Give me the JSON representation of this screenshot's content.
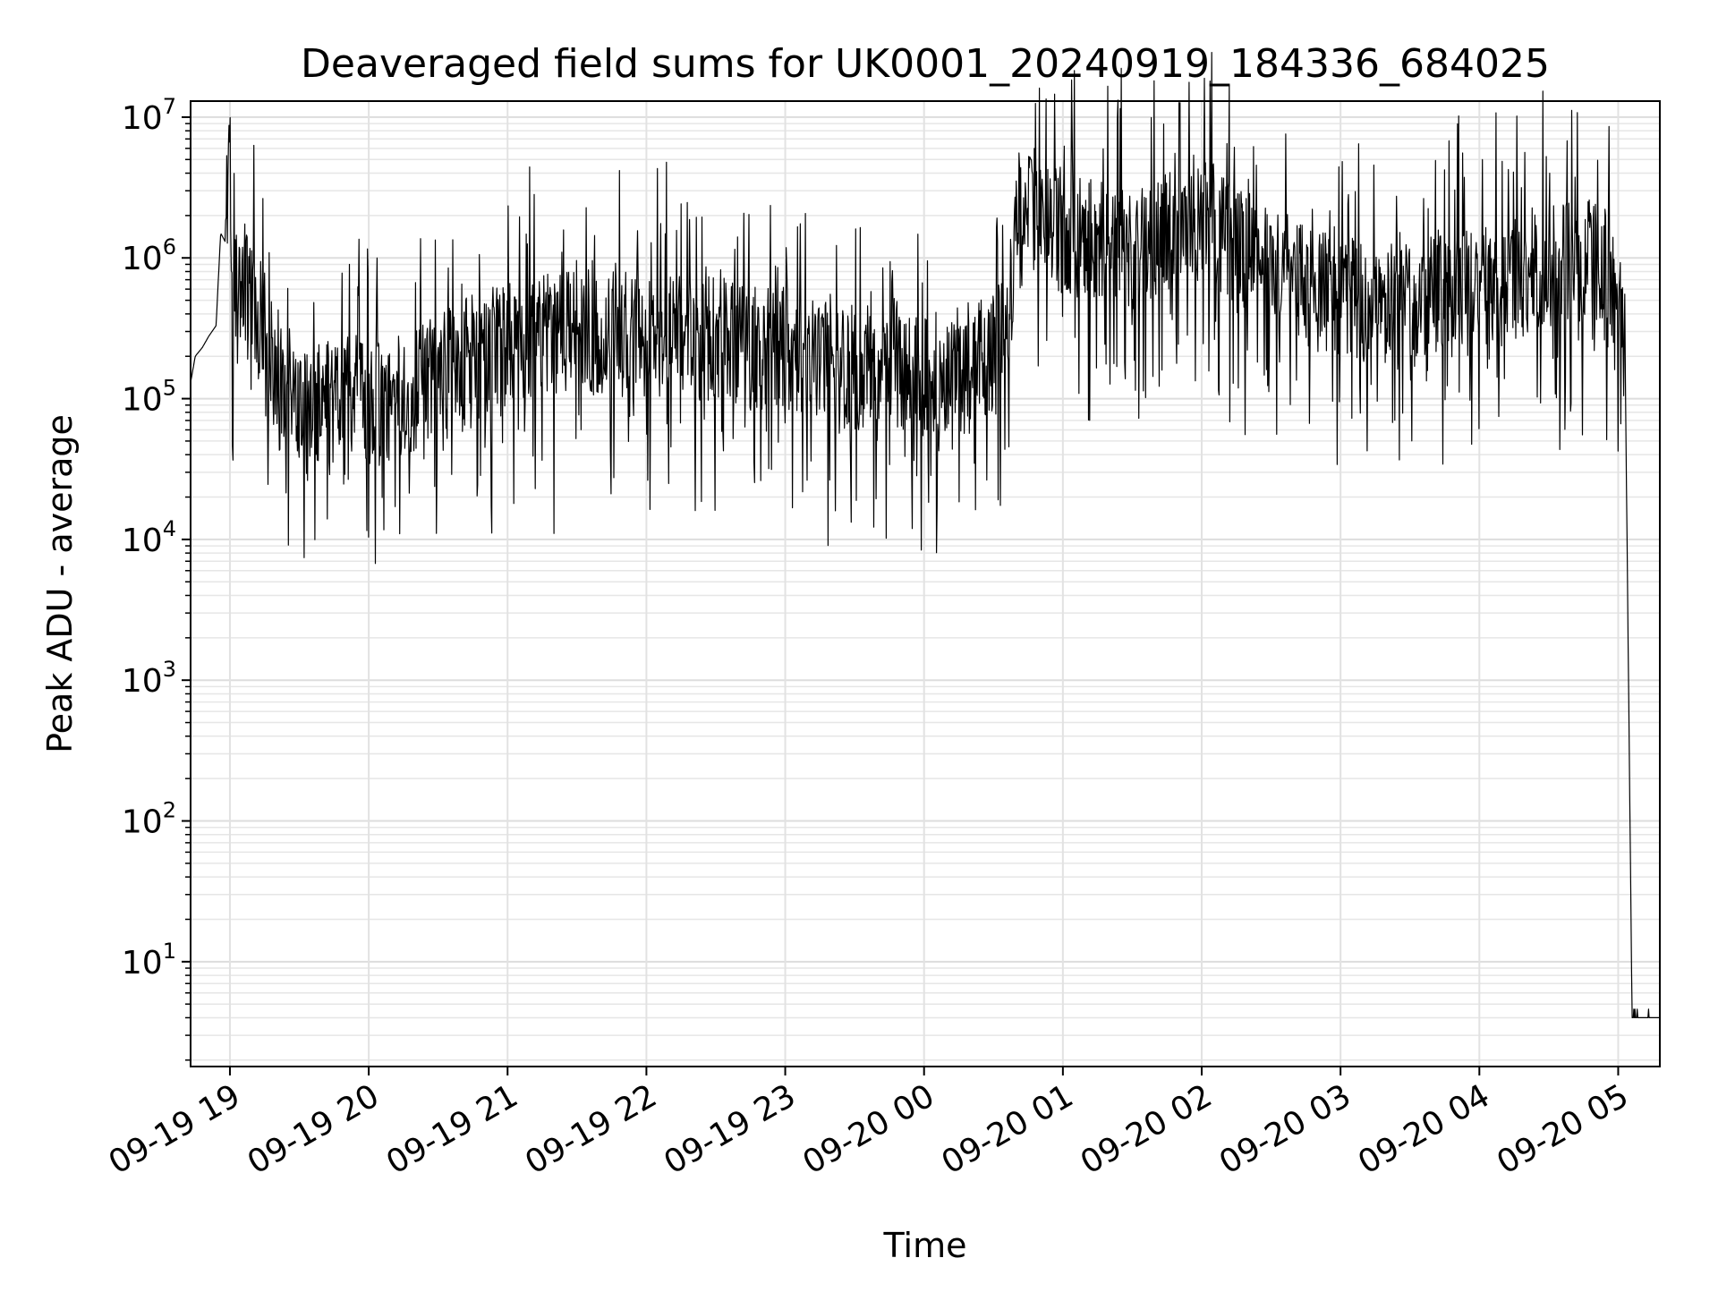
{
  "chart_data": {
    "type": "line",
    "title": "Deaveraged field sums for UK0001_20240919_184336_684025",
    "xlabel": "Time",
    "ylabel": "Peak ADU - average",
    "yscale": "log",
    "ylim": [
      1.8,
      13000000
    ],
    "xlim": [
      "2024-09-19 18:43",
      "2024-09-20 05:18"
    ],
    "grid": true,
    "grid_minor": true,
    "line_color": "#000000",
    "x_ticks": [
      {
        "label": "09-19 19",
        "time": "2024-09-19 19:00"
      },
      {
        "label": "09-19 20",
        "time": "2024-09-19 20:00"
      },
      {
        "label": "09-19 21",
        "time": "2024-09-19 21:00"
      },
      {
        "label": "09-19 22",
        "time": "2024-09-19 22:00"
      },
      {
        "label": "09-19 23",
        "time": "2024-09-19 23:00"
      },
      {
        "label": "09-20 00",
        "time": "2024-09-20 00:00"
      },
      {
        "label": "09-20 01",
        "time": "2024-09-20 01:00"
      },
      {
        "label": "09-20 02",
        "time": "2024-09-20 02:00"
      },
      {
        "label": "09-20 03",
        "time": "2024-09-20 03:00"
      },
      {
        "label": "09-20 04",
        "time": "2024-09-20 04:00"
      },
      {
        "label": "09-20 05",
        "time": "2024-09-20 05:00"
      }
    ],
    "y_ticks": [
      {
        "base": "10",
        "exp": "1",
        "value": 10
      },
      {
        "base": "10",
        "exp": "2",
        "value": 100
      },
      {
        "base": "10",
        "exp": "3",
        "value": 1000
      },
      {
        "base": "10",
        "exp": "4",
        "value": 10000
      },
      {
        "base": "10",
        "exp": "5",
        "value": 100000
      },
      {
        "base": "10",
        "exp": "6",
        "value": 1000000
      },
      {
        "base": "10",
        "exp": "7",
        "value": 10000000
      }
    ],
    "series": [
      {
        "points": [
          [
            "2024-09-19 18:43",
            130000
          ],
          [
            "2024-09-19 18:45",
            200000
          ],
          [
            "2024-09-19 18:48",
            230000
          ],
          [
            "2024-09-19 18:51",
            280000
          ],
          [
            "2024-09-19 18:54",
            330000
          ],
          [
            "2024-09-19 18:56",
            1500000
          ],
          [
            "2024-09-19 18:58",
            1300000
          ],
          [
            "2024-09-19 19:00",
            5000000
          ],
          [
            "2024-09-19 19:01",
            700000
          ],
          [
            "2024-09-19 19:05",
            600000
          ],
          [
            "2024-09-19 19:10",
            450000
          ],
          [
            "2024-09-19 19:15",
            300000
          ],
          [
            "2024-09-19 19:20",
            160000
          ],
          [
            "2024-09-19 19:25",
            120000
          ],
          [
            "2024-09-19 19:30",
            100000
          ],
          [
            "2024-09-19 19:35",
            90000
          ],
          [
            "2024-09-19 19:40",
            95000
          ],
          [
            "2024-09-19 19:45",
            100000
          ],
          [
            "2024-09-19 19:50",
            110000
          ],
          [
            "2024-09-19 19:55",
            100000
          ],
          [
            "2024-09-19 20:00",
            90000
          ],
          [
            "2024-09-19 20:10",
            100000
          ],
          [
            "2024-09-19 20:20",
            110000
          ],
          [
            "2024-09-19 20:30",
            150000
          ],
          [
            "2024-09-19 20:40",
            200000
          ],
          [
            "2024-09-19 20:50",
            180000
          ],
          [
            "2024-09-19 21:00",
            250000
          ],
          [
            "2024-09-19 21:15",
            280000
          ],
          [
            "2024-09-19 21:30",
            300000
          ],
          [
            "2024-09-19 21:45",
            290000
          ],
          [
            "2024-09-19 22:00",
            280000
          ],
          [
            "2024-09-19 22:15",
            270000
          ],
          [
            "2024-09-19 22:30",
            260000
          ],
          [
            "2024-09-19 22:45",
            230000
          ],
          [
            "2024-09-19 23:00",
            220000
          ],
          [
            "2024-09-19 23:15",
            180000
          ],
          [
            "2024-09-19 23:30",
            170000
          ],
          [
            "2024-09-19 23:45",
            160000
          ],
          [
            "2024-09-20 00:00",
            150000
          ],
          [
            "2024-09-20 00:15",
            160000
          ],
          [
            "2024-09-20 00:30",
            200000
          ],
          [
            "2024-09-20 00:36",
            300000
          ],
          [
            "2024-09-20 00:40",
            2000000
          ],
          [
            "2024-09-20 00:50",
            2200000
          ],
          [
            "2024-09-20 01:00",
            1500000
          ],
          [
            "2024-09-20 01:15",
            1300000
          ],
          [
            "2024-09-20 01:30",
            1200000
          ],
          [
            "2024-09-20 01:45",
            1600000
          ],
          [
            "2024-09-20 02:00",
            2000000
          ],
          [
            "2024-09-20 02:10",
            1400000
          ],
          [
            "2024-09-20 02:30",
            900000
          ],
          [
            "2024-09-20 03:00",
            500000
          ],
          [
            "2024-09-20 03:30",
            450000
          ],
          [
            "2024-09-20 04:00",
            600000
          ],
          [
            "2024-09-20 04:30",
            900000
          ],
          [
            "2024-09-20 04:50",
            1000000
          ],
          [
            "2024-09-20 05:00",
            600000
          ],
          [
            "2024-09-20 05:03",
            200000
          ],
          [
            "2024-09-20 05:06",
            4
          ],
          [
            "2024-09-20 05:18",
            4
          ]
        ]
      }
    ]
  }
}
